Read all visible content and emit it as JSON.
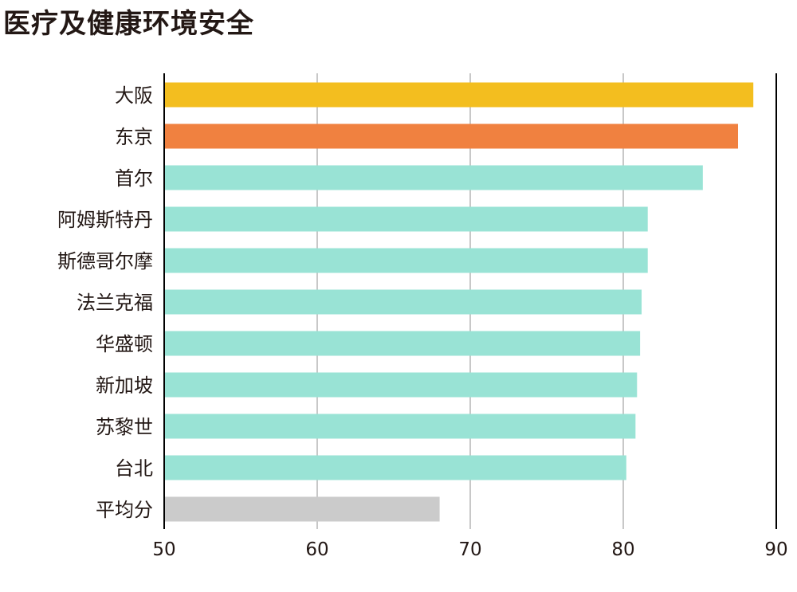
{
  "chart_data": {
    "type": "bar",
    "orientation": "horizontal",
    "title": "医疗及健康环境安全",
    "categories": [
      "大阪",
      "东京",
      "首尔",
      "阿姆斯特丹",
      "斯德哥尔摩",
      "法兰克福",
      "华盛顿",
      "新加坡",
      "苏黎世",
      "台北",
      "平均分"
    ],
    "values": [
      88.5,
      87.5,
      85.2,
      81.6,
      81.6,
      81.2,
      81.1,
      80.9,
      80.8,
      80.2,
      68.0
    ],
    "colors": [
      "#f3be1f",
      "#f08140",
      "#99e3d5",
      "#99e3d5",
      "#99e3d5",
      "#99e3d5",
      "#99e3d5",
      "#99e3d5",
      "#99e3d5",
      "#99e3d5",
      "#cbcbcb"
    ],
    "xlim": [
      50,
      90
    ],
    "xticks": [
      50,
      60,
      70,
      80,
      90
    ],
    "xlabel": "",
    "ylabel": "",
    "grid": true,
    "legend": "none"
  }
}
